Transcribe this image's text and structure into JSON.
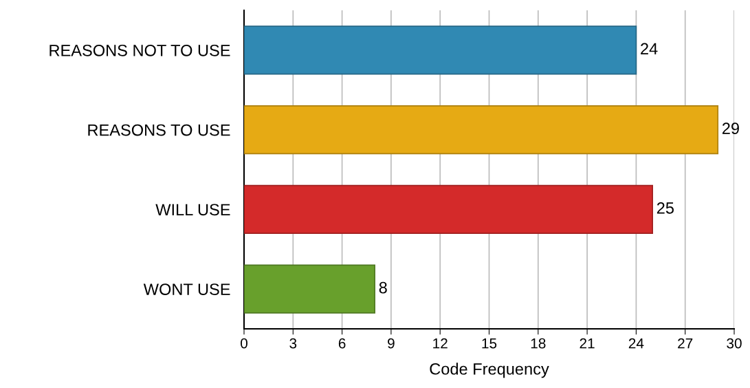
{
  "chart_data": {
    "type": "bar",
    "orientation": "horizontal",
    "xlabel": "Code Frequency",
    "categories": [
      "REASONS NOT TO USE",
      "REASONS TO USE",
      "WILL USE",
      "WONT USE"
    ],
    "values": [
      24,
      29,
      25,
      8
    ],
    "colors": [
      "#3089b3",
      "#e6aa14",
      "#d42a2a",
      "#68a02c"
    ],
    "xlim": [
      0,
      30
    ],
    "xticks": [
      0,
      3,
      6,
      9,
      12,
      15,
      18,
      21,
      24,
      27,
      30
    ],
    "grid": "x",
    "data_labels": true,
    "legend": false
  }
}
